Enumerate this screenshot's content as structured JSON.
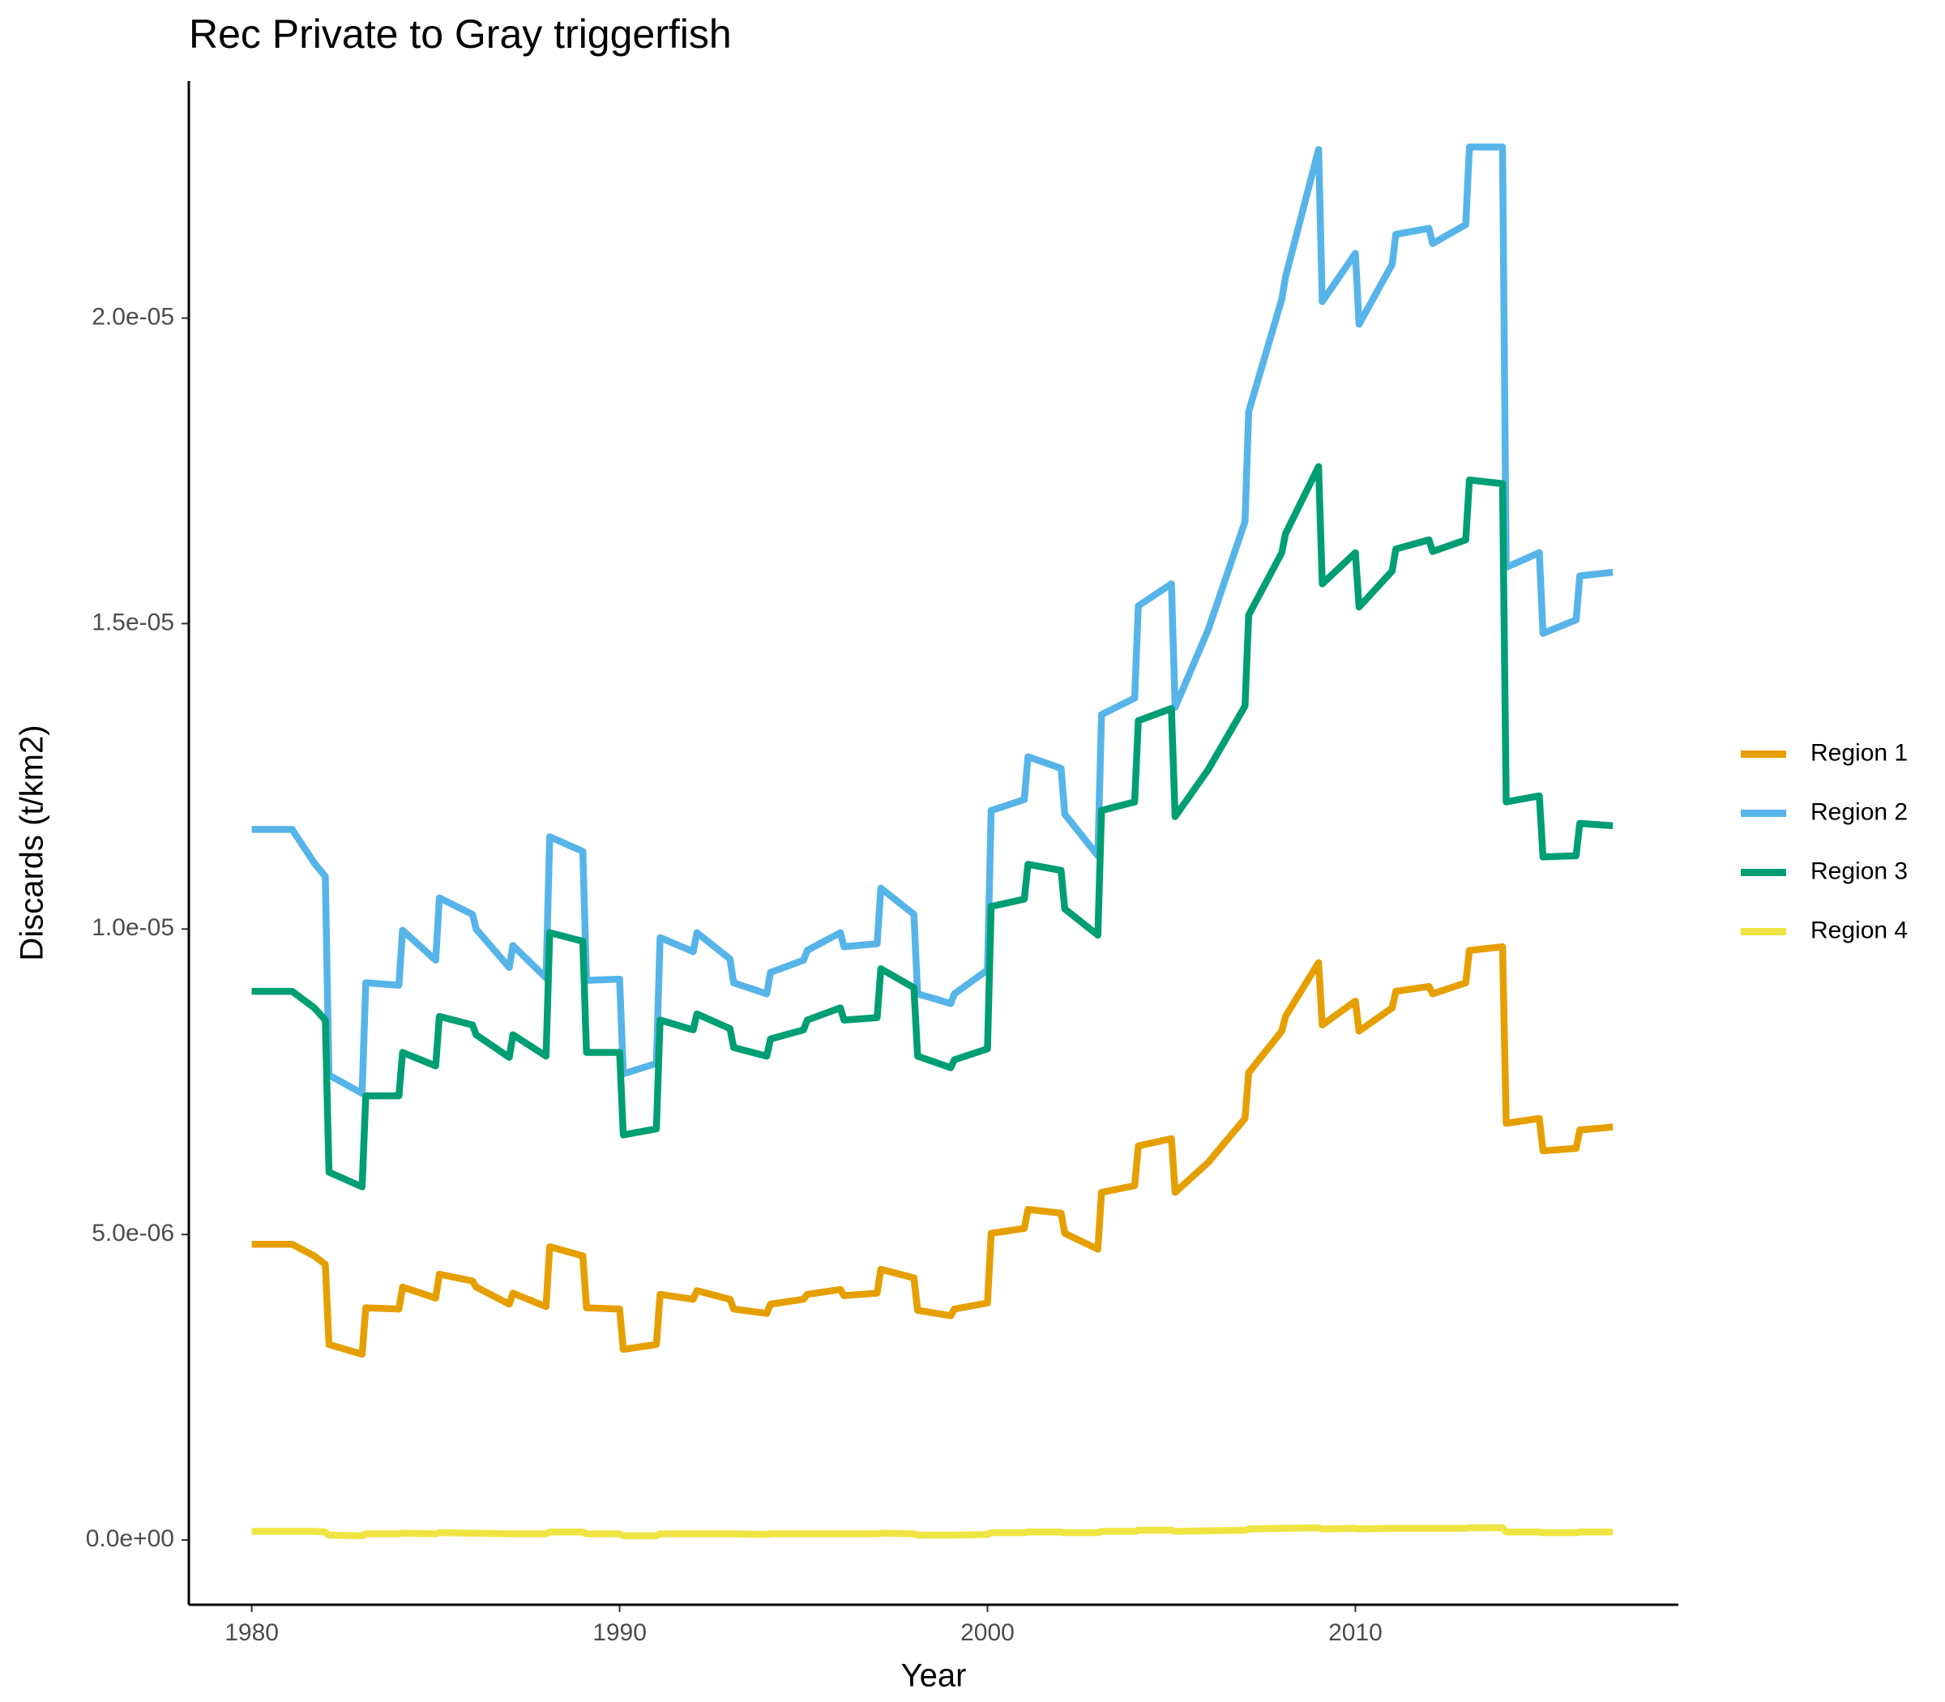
{
  "chart_data": {
    "type": "line",
    "title": "Rec Private to Gray triggerfish",
    "x_label": "Year",
    "y_label": "Discards (t/km2)",
    "legend": "right",
    "grid": false,
    "xlim": [
      1978.29,
      2018.78
    ],
    "ylim": [
      -1.06e-06,
      2.388e-05
    ],
    "xticks": [
      1980,
      1990,
      2000,
      2010
    ],
    "yticks": [
      {
        "value": 0,
        "label": "0.0e+00"
      },
      {
        "value": 5e-06,
        "label": "5.0e-06"
      },
      {
        "value": 1e-05,
        "label": "1.0e-05"
      },
      {
        "value": 1.5e-05,
        "label": "1.5e-05"
      },
      {
        "value": 2e-05,
        "label": "2.0e-05"
      }
    ],
    "x": [
      1980.0,
      1981.1,
      1981.7,
      1982.0,
      1982.1,
      1983.0,
      1983.1,
      1984.0,
      1984.1,
      1985.0,
      1985.1,
      1986.0,
      1986.1,
      1987.0,
      1987.1,
      1988.0,
      1988.1,
      1989.0,
      1989.1,
      1990.0,
      1990.1,
      1991.0,
      1991.1,
      1992.0,
      1992.1,
      1993.0,
      1993.1,
      1994.0,
      1994.1,
      1995.0,
      1995.1,
      1996.0,
      1996.1,
      1997.0,
      1997.1,
      1998.0,
      1998.1,
      1999.0,
      1999.1,
      2000.0,
      2000.1,
      2001.0,
      2001.1,
      2002.0,
      2002.1,
      2003.0,
      2003.1,
      2004.0,
      2004.1,
      2005.0,
      2005.1,
      2006.0,
      2007.0,
      2007.1,
      2008.0,
      2008.1,
      2009.0,
      2009.1,
      2010.0,
      2010.1,
      2011.0,
      2011.1,
      2012.0,
      2012.1,
      2013.0,
      2013.1,
      2014.0,
      2014.1,
      2015.0,
      2015.1,
      2016.0,
      2016.1,
      2017.0
    ],
    "series": [
      {
        "name": "Region 1",
        "color": "#E69F00",
        "values": [
          4.84e-06,
          4.84e-06,
          4.65e-06,
          4.51e-06,
          3.2e-06,
          3.04e-06,
          3.8e-06,
          3.78e-06,
          4.14e-06,
          3.96e-06,
          4.35e-06,
          4.24e-06,
          4.14e-06,
          3.86e-06,
          4.04e-06,
          3.82e-06,
          4.8e-06,
          4.65e-06,
          3.8e-06,
          3.78e-06,
          3.12e-06,
          3.2e-06,
          4.02e-06,
          3.94e-06,
          4.08e-06,
          3.94e-06,
          3.78e-06,
          3.71e-06,
          3.86e-06,
          3.94e-06,
          4.02e-06,
          4.1e-06,
          4e-06,
          4.04e-06,
          4.43e-06,
          4.29e-06,
          3.76e-06,
          3.67e-06,
          3.78e-06,
          3.88e-06,
          5.02e-06,
          5.1e-06,
          5.41e-06,
          5.35e-06,
          5.02e-06,
          4.76e-06,
          5.69e-06,
          5.8e-06,
          6.45e-06,
          6.57e-06,
          5.69e-06,
          6.18e-06,
          6.9e-06,
          7.65e-06,
          8.33e-06,
          8.57e-06,
          9.45e-06,
          8.43e-06,
          8.82e-06,
          8.33e-06,
          8.71e-06,
          8.98e-06,
          9.06e-06,
          8.94e-06,
          9.12e-06,
          9.65e-06,
          9.71e-06,
          6.82e-06,
          6.9e-06,
          6.37e-06,
          6.41e-06,
          6.71e-06,
          6.76e-06
        ]
      },
      {
        "name": "Region 2",
        "color": "#56B4E9",
        "values": [
          1.163e-05,
          1.163e-05,
          1.108e-05,
          1.086e-05,
          7.61e-06,
          7.31e-06,
          9.12e-06,
          9.08e-06,
          9.98e-06,
          9.49e-06,
          1.051e-05,
          1.024e-05,
          1e-05,
          9.37e-06,
          9.73e-06,
          9.2e-06,
          1.151e-05,
          1.127e-05,
          9.16e-06,
          9.18e-06,
          7.63e-06,
          7.8e-06,
          9.86e-06,
          9.63e-06,
          9.94e-06,
          9.51e-06,
          9.12e-06,
          8.94e-06,
          9.29e-06,
          9.49e-06,
          9.65e-06,
          9.94e-06,
          9.71e-06,
          9.76e-06,
          1.067e-05,
          1.024e-05,
          8.94e-06,
          8.78e-06,
          8.94e-06,
          9.33e-06,
          1.194e-05,
          1.212e-05,
          1.282e-05,
          1.263e-05,
          1.188e-05,
          1.12e-05,
          1.351e-05,
          1.378e-05,
          1.529e-05,
          1.565e-05,
          1.363e-05,
          1.49e-05,
          1.667e-05,
          1.847e-05,
          2.031e-05,
          2.067e-05,
          2.276e-05,
          2.027e-05,
          2.106e-05,
          1.99e-05,
          2.088e-05,
          2.137e-05,
          2.147e-05,
          2.122e-05,
          2.153e-05,
          2.28e-05,
          2.28e-05,
          1.592e-05,
          1.616e-05,
          1.484e-05,
          1.506e-05,
          1.578e-05,
          1.584e-05
        ]
      },
      {
        "name": "Region 3",
        "color": "#009E73",
        "values": [
          8.98e-06,
          8.98e-06,
          8.71e-06,
          8.51e-06,
          6.02e-06,
          5.78e-06,
          7.27e-06,
          7.27e-06,
          7.98e-06,
          7.76e-06,
          8.57e-06,
          8.43e-06,
          8.27e-06,
          7.9e-06,
          8.27e-06,
          7.92e-06,
          9.94e-06,
          9.8e-06,
          7.98e-06,
          7.98e-06,
          6.63e-06,
          6.73e-06,
          8.51e-06,
          8.35e-06,
          8.61e-06,
          8.37e-06,
          8.06e-06,
          7.92e-06,
          8.2e-06,
          8.35e-06,
          8.51e-06,
          8.71e-06,
          8.51e-06,
          8.55e-06,
          9.35e-06,
          9.04e-06,
          7.92e-06,
          7.73e-06,
          7.86e-06,
          8.04e-06,
          1.037e-05,
          1.049e-05,
          1.106e-05,
          1.096e-05,
          1.033e-05,
          9.9e-06,
          1.194e-05,
          1.208e-05,
          1.341e-05,
          1.361e-05,
          1.184e-05,
          1.261e-05,
          1.365e-05,
          1.514e-05,
          1.616e-05,
          1.647e-05,
          1.757e-05,
          1.565e-05,
          1.616e-05,
          1.527e-05,
          1.586e-05,
          1.622e-05,
          1.637e-05,
          1.618e-05,
          1.637e-05,
          1.735e-05,
          1.729e-05,
          1.208e-05,
          1.218e-05,
          1.118e-05,
          1.12e-05,
          1.173e-05,
          1.169e-05
        ]
      },
      {
        "name": "Region 4",
        "color": "#F0E442",
        "values": [
          1.4e-07,
          1.4e-07,
          1.4e-07,
          1.3e-07,
          8e-08,
          7e-08,
          1e-07,
          1e-07,
          1.1e-07,
          1e-07,
          1.2e-07,
          1.1e-07,
          1.1e-07,
          1e-07,
          1e-07,
          1e-07,
          1.3e-07,
          1.3e-07,
          1e-07,
          1e-07,
          7e-08,
          7e-08,
          1e-07,
          1e-07,
          1e-07,
          1e-07,
          1e-07,
          9e-08,
          1e-07,
          1e-07,
          1e-07,
          1e-07,
          1e-07,
          1e-07,
          1.1e-07,
          1e-07,
          8e-08,
          8e-08,
          8e-08,
          9e-08,
          1.2e-07,
          1.2e-07,
          1.3e-07,
          1.3e-07,
          1.2e-07,
          1.2e-07,
          1.4e-07,
          1.4e-07,
          1.6e-07,
          1.6e-07,
          1.4e-07,
          1.5e-07,
          1.6e-07,
          1.8e-07,
          1.9e-07,
          1.9e-07,
          2e-07,
          1.8e-07,
          1.9e-07,
          1.8e-07,
          1.9e-07,
          1.9e-07,
          1.9e-07,
          1.9e-07,
          1.9e-07,
          2e-07,
          2e-07,
          1.3e-07,
          1.3e-07,
          1.2e-07,
          1.2e-07,
          1.3e-07,
          1.3e-07
        ]
      }
    ]
  }
}
